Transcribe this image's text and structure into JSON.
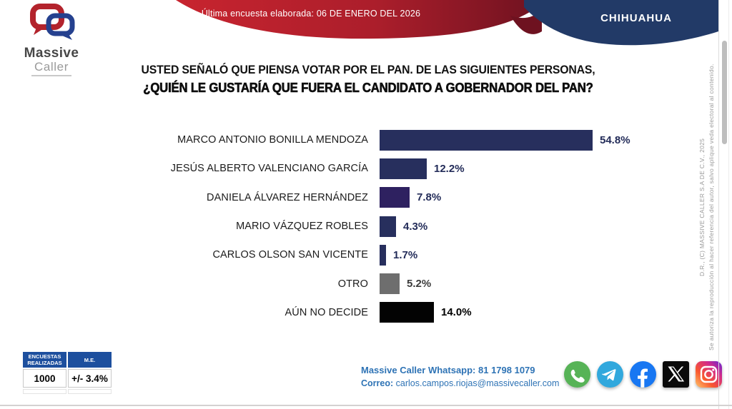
{
  "header": {
    "banner_text": "Última encuesta elaborada: 06 DE ENERO DEL 2026",
    "region": "CHIHUAHUA",
    "logo_line1": "Massive",
    "logo_line2": "Caller"
  },
  "title": {
    "line1": "USTED SEÑALÓ QUE PIENSA VOTAR POR EL PAN. DE LAS SIGUIENTES PERSONAS,",
    "line2": "¿QUIÉN LE GUSTARÍA QUE FUERA EL CANDIDATO A GOBERNADOR DEL PAN?"
  },
  "chart_data": {
    "type": "bar",
    "orientation": "horizontal",
    "title": "¿QUIÉN LE GUSTARÍA QUE FUERA EL CANDIDATO A GOBERNADOR DEL PAN?",
    "categories": [
      "MARCO ANTONIO BONILLA MENDOZA",
      "JESÚS ALBERTO VALENCIANO GARCÍA",
      "DANIELA ÁLVAREZ HERNÁNDEZ",
      "MARIO VÁZQUEZ ROBLES",
      "CARLOS OLSON SAN VICENTE",
      "OTRO",
      "AÚN NO DECIDE"
    ],
    "values": [
      54.8,
      12.2,
      7.8,
      4.3,
      1.7,
      5.2,
      14.0
    ],
    "value_labels": [
      "54.8%",
      "12.2%",
      "7.8%",
      "4.3%",
      "1.7%",
      "5.2%",
      "14.0%"
    ],
    "bar_colors": [
      "#272f5d",
      "#272f5d",
      "#2e2160",
      "#272f5d",
      "#272f5d",
      "#6e6e6e",
      "#030303"
    ],
    "value_label_colors": [
      "#232c59",
      "#232c59",
      "#232c59",
      "#232c59",
      "#232c59",
      "#3c3c3c",
      "#000000"
    ],
    "xlim": [
      0,
      60
    ],
    "grid": false,
    "legend": false
  },
  "stats_table": {
    "headers": [
      "ENCUESTAS REALIZADAS",
      "M.E."
    ],
    "values": [
      "1000",
      "+/- 3.4%"
    ]
  },
  "contact": {
    "whatsapp_line": "Massive Caller Whatsapp: 81 1798 1079",
    "email_label": "Correo:",
    "email_value": "carlos.campos.riojas@massivecaller.com"
  },
  "social_icons": [
    "whatsapp",
    "telegram",
    "facebook",
    "x",
    "instagram"
  ],
  "legal": {
    "copyright": "D.R., (C) MASSIVE CALLER S.A DE C.V., 2025",
    "disclaimer": "Se autoriza la reproducción al hacer referencia del autor, salvo aplique veda electoral al contenido."
  },
  "colors": {
    "banner_red": "#b01f2b",
    "banner_navy": "#223a67",
    "bar_navy": "#272f5d",
    "bar_purple": "#2e2160",
    "bar_gray": "#6e6e6e",
    "bar_black": "#000000",
    "table_header_blue": "#1d4f9e",
    "contact_blue": "#2e73b5"
  }
}
